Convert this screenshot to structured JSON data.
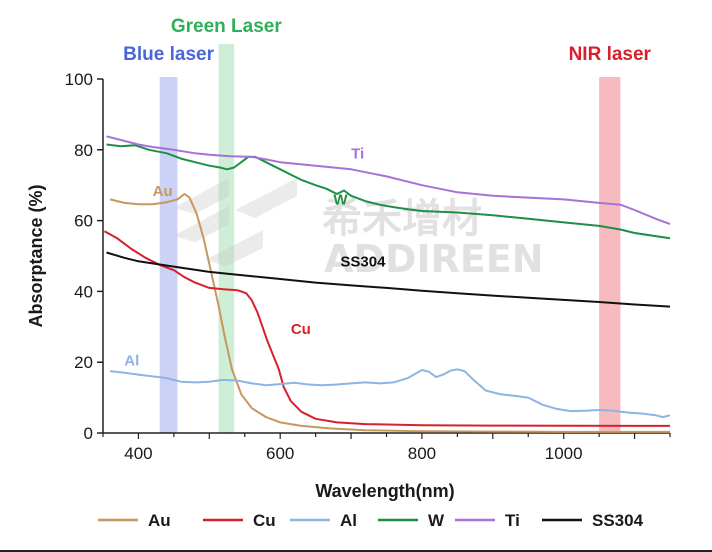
{
  "chart_data": {
    "type": "line",
    "title": "",
    "xlabel": "Wavelength(nm)",
    "ylabel": "Absorptance (%)",
    "xlim": [
      350,
      1150
    ],
    "ylim": [
      0,
      100
    ],
    "xticks": [
      400,
      600,
      800,
      1000
    ],
    "yticks": [
      0,
      20,
      40,
      60,
      80,
      100
    ],
    "grid": false,
    "legend_position": "bottom",
    "laser_bands": [
      {
        "name": "Blue laser",
        "range": [
          430,
          455
        ],
        "color": "#b9c3f3",
        "label_color": "#4a66d8"
      },
      {
        "name": "Green Laser",
        "range": [
          513,
          535
        ],
        "color": "#bde8c8",
        "label_color": "#2faf5a"
      },
      {
        "name": "NIR laser",
        "range": [
          1050,
          1080
        ],
        "color": "#f3a3aa",
        "label_color": "#d8202c"
      }
    ],
    "series": [
      {
        "name": "Au",
        "color": "#c8965e",
        "annotation": "Au",
        "annotation_at": [
          420,
          67
        ],
        "points": [
          [
            360,
            66
          ],
          [
            380,
            65
          ],
          [
            400,
            64.6
          ],
          [
            420,
            64.6
          ],
          [
            440,
            65.2
          ],
          [
            455,
            66
          ],
          [
            465,
            67.5
          ],
          [
            472,
            66.5
          ],
          [
            482,
            62
          ],
          [
            492,
            55
          ],
          [
            502,
            46
          ],
          [
            512,
            37
          ],
          [
            522,
            27
          ],
          [
            532,
            18
          ],
          [
            545,
            11
          ],
          [
            560,
            7
          ],
          [
            580,
            4.5
          ],
          [
            600,
            3
          ],
          [
            630,
            2
          ],
          [
            670,
            1.3
          ],
          [
            720,
            0.8
          ],
          [
            800,
            0.5
          ],
          [
            900,
            0.4
          ],
          [
            1000,
            0.3
          ],
          [
            1150,
            0.3
          ]
        ]
      },
      {
        "name": "Cu",
        "color": "#d8202c",
        "annotation": "Cu",
        "annotation_at": [
          615,
          28
        ],
        "points": [
          [
            352,
            57
          ],
          [
            370,
            55
          ],
          [
            390,
            52
          ],
          [
            410,
            49.5
          ],
          [
            430,
            47.5
          ],
          [
            450,
            46
          ],
          [
            465,
            44
          ],
          [
            480,
            42.5
          ],
          [
            500,
            41
          ],
          [
            520,
            40.6
          ],
          [
            540,
            40.3
          ],
          [
            552,
            39.5
          ],
          [
            560,
            37.5
          ],
          [
            568,
            34
          ],
          [
            575,
            30
          ],
          [
            582,
            26
          ],
          [
            590,
            22
          ],
          [
            598,
            18
          ],
          [
            605,
            13
          ],
          [
            615,
            9
          ],
          [
            630,
            6
          ],
          [
            650,
            4
          ],
          [
            680,
            3
          ],
          [
            720,
            2.5
          ],
          [
            800,
            2.2
          ],
          [
            900,
            2.1
          ],
          [
            1150,
            2
          ]
        ]
      },
      {
        "name": "Al",
        "color": "#8db4e2",
        "annotation": "Al",
        "annotation_at": [
          380,
          19
        ],
        "points": [
          [
            360,
            17.5
          ],
          [
            380,
            17
          ],
          [
            400,
            16.5
          ],
          [
            420,
            16
          ],
          [
            440,
            15.5
          ],
          [
            460,
            14.5
          ],
          [
            480,
            14.3
          ],
          [
            500,
            14.5
          ],
          [
            520,
            15
          ],
          [
            540,
            14.8
          ],
          [
            560,
            14
          ],
          [
            580,
            13.5
          ],
          [
            600,
            13.8
          ],
          [
            620,
            14.2
          ],
          [
            640,
            13.7
          ],
          [
            660,
            13.5
          ],
          [
            680,
            13.7
          ],
          [
            700,
            14
          ],
          [
            720,
            14.3
          ],
          [
            740,
            14
          ],
          [
            760,
            14.3
          ],
          [
            780,
            15.5
          ],
          [
            800,
            17.8
          ],
          [
            810,
            17.3
          ],
          [
            820,
            15.8
          ],
          [
            830,
            16.5
          ],
          [
            840,
            17.6
          ],
          [
            850,
            18
          ],
          [
            860,
            17.5
          ],
          [
            870,
            15.5
          ],
          [
            890,
            12
          ],
          [
            910,
            11
          ],
          [
            930,
            10.5
          ],
          [
            950,
            10
          ],
          [
            970,
            8
          ],
          [
            990,
            6.8
          ],
          [
            1010,
            6.2
          ],
          [
            1030,
            6.3
          ],
          [
            1050,
            6.5
          ],
          [
            1070,
            6.3
          ],
          [
            1090,
            5.8
          ],
          [
            1110,
            5.5
          ],
          [
            1130,
            5
          ],
          [
            1140,
            4.5
          ],
          [
            1150,
            5
          ]
        ]
      },
      {
        "name": "W",
        "color": "#1e8f45",
        "annotation": "W",
        "annotation_at": [
          675,
          64.5
        ],
        "points": [
          [
            355,
            81.5
          ],
          [
            375,
            81
          ],
          [
            395,
            81.3
          ],
          [
            415,
            80
          ],
          [
            440,
            79
          ],
          [
            460,
            77.5
          ],
          [
            480,
            76.5
          ],
          [
            500,
            75.5
          ],
          [
            515,
            75
          ],
          [
            525,
            74.5
          ],
          [
            535,
            75
          ],
          [
            545,
            76.5
          ],
          [
            555,
            78
          ],
          [
            565,
            78
          ],
          [
            580,
            76.5
          ],
          [
            600,
            74.5
          ],
          [
            615,
            73
          ],
          [
            630,
            71.5
          ],
          [
            650,
            70
          ],
          [
            665,
            69
          ],
          [
            680,
            67.5
          ],
          [
            690,
            68.5
          ],
          [
            700,
            67
          ],
          [
            720,
            65.5
          ],
          [
            740,
            64.5
          ],
          [
            760,
            63.8
          ],
          [
            780,
            63.2
          ],
          [
            800,
            62.7
          ],
          [
            850,
            62.3
          ],
          [
            900,
            61.5
          ],
          [
            950,
            60.5
          ],
          [
            1000,
            59.5
          ],
          [
            1050,
            58.5
          ],
          [
            1080,
            57.5
          ],
          [
            1100,
            56.5
          ],
          [
            1150,
            55
          ]
        ]
      },
      {
        "name": "Ti",
        "color": "#a871d8",
        "annotation": "Ti",
        "annotation_at": [
          700,
          77.5
        ],
        "points": [
          [
            355,
            83.8
          ],
          [
            380,
            82.5
          ],
          [
            400,
            81.5
          ],
          [
            420,
            80.8
          ],
          [
            450,
            80
          ],
          [
            480,
            79
          ],
          [
            500,
            78.6
          ],
          [
            530,
            78.2
          ],
          [
            560,
            78
          ],
          [
            580,
            77.3
          ],
          [
            600,
            76.5
          ],
          [
            650,
            75.5
          ],
          [
            700,
            74.5
          ],
          [
            750,
            72.5
          ],
          [
            800,
            70
          ],
          [
            850,
            68
          ],
          [
            900,
            67
          ],
          [
            950,
            66.5
          ],
          [
            1000,
            66
          ],
          [
            1050,
            65
          ],
          [
            1080,
            64.5
          ],
          [
            1100,
            63
          ],
          [
            1130,
            60.5
          ],
          [
            1150,
            59
          ]
        ]
      },
      {
        "name": "SS304",
        "color": "#111111",
        "annotation": "SS304",
        "annotation_at": [
          685,
          47
        ],
        "points": [
          [
            355,
            51
          ],
          [
            380,
            49.5
          ],
          [
            400,
            48.5
          ],
          [
            450,
            47
          ],
          [
            500,
            45.5
          ],
          [
            550,
            44.5
          ],
          [
            600,
            43.5
          ],
          [
            650,
            42.5
          ],
          [
            700,
            41.7
          ],
          [
            750,
            41
          ],
          [
            800,
            40.2
          ],
          [
            850,
            39.5
          ],
          [
            900,
            38.8
          ],
          [
            950,
            38.2
          ],
          [
            1000,
            37.6
          ],
          [
            1050,
            37
          ],
          [
            1100,
            36.3
          ],
          [
            1150,
            35.7
          ]
        ]
      }
    ]
  },
  "watermark": {
    "line1": "希禾增材",
    "line2": "ADDIREEN"
  }
}
